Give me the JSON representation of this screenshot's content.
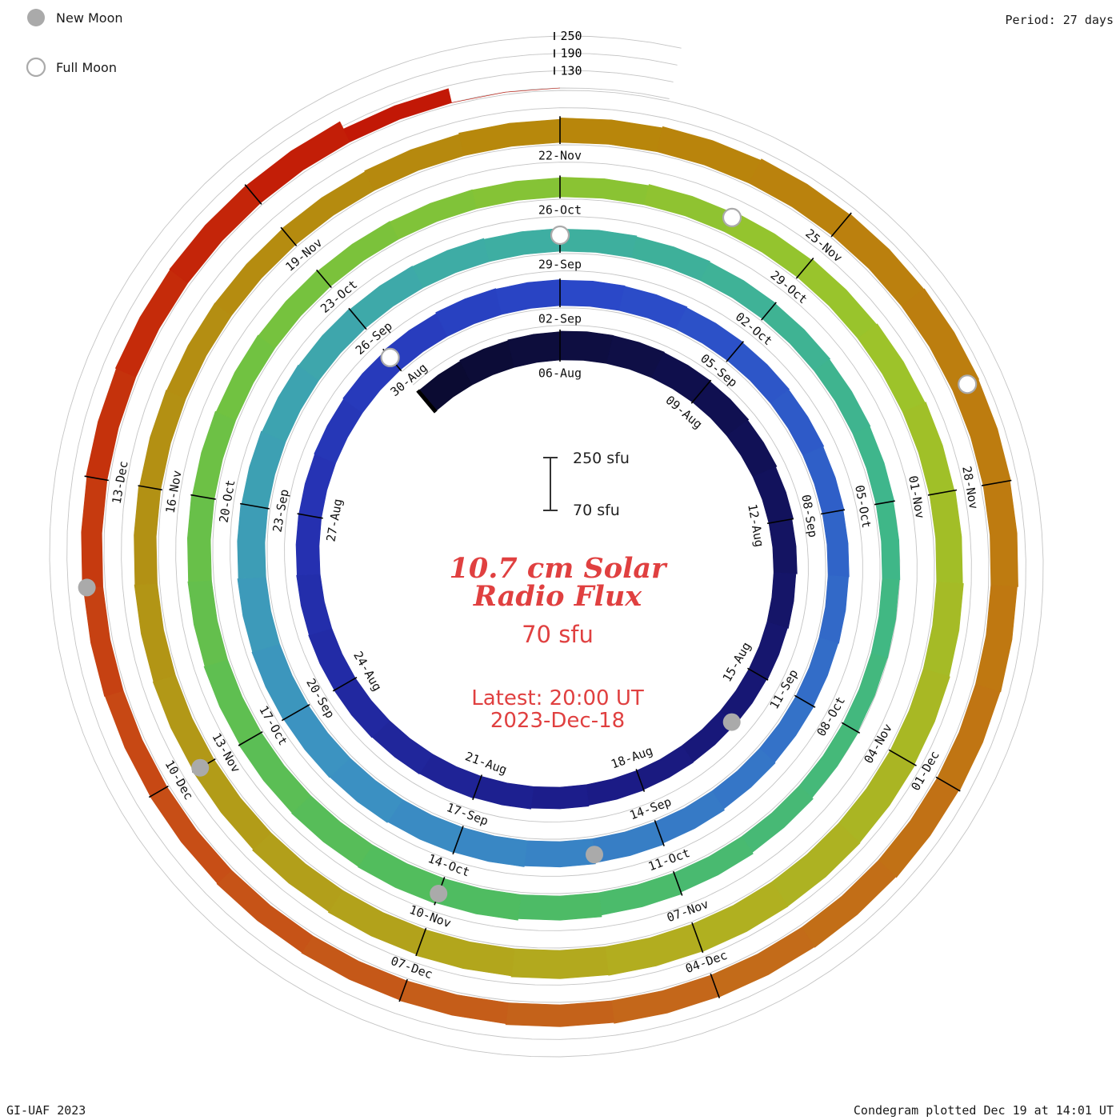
{
  "legend": {
    "new_moon": "New Moon",
    "full_moon": "Full Moon"
  },
  "period_label": "Period: 27 days",
  "credit": "GI-UAF 2023",
  "plotted_label": "Condegram plotted Dec 19 at 14:01 UT",
  "title": {
    "line1": "10.7 cm Solar",
    "line2": "Radio Flux",
    "latest_flux": "70 sfu",
    "latest_label": "Latest: 20:00 UT",
    "latest_date": "2023-Dec-18"
  },
  "scale": {
    "top_label": "250 sfu",
    "bottom_label": "70 sfu",
    "axis_labels": [
      "250",
      "190",
      "130"
    ]
  },
  "colors": {
    "red_text": "#e04040",
    "moon": "#aaaaaa",
    "guide": "#c4c4c4",
    "tick": "#000000"
  },
  "chart_data": {
    "type": "area",
    "subtype": "spiral-condegram",
    "title": "10.7 cm Solar Radio Flux",
    "period_days": 27,
    "start_date": "2023-08-03",
    "end_date": "2023-12-18",
    "radial_unit": "sfu",
    "flux_baseline": 70,
    "flux_max": 250,
    "flux_gridlines": [
      130,
      190,
      250
    ],
    "tick_interval_days": 3,
    "tick_start_index": 3,
    "tick_end_index": 135,
    "flux": [
      162,
      165,
      168,
      170,
      169,
      167,
      164,
      160,
      156,
      151,
      147,
      144,
      141,
      139,
      140,
      142,
      145,
      148,
      151,
      153,
      155,
      154,
      152,
      150,
      149,
      151,
      154,
      158,
      162,
      160,
      158,
      156,
      153,
      151,
      149,
      146,
      143,
      141,
      139,
      141,
      144,
      149,
      154,
      158,
      161,
      163,
      166,
      168,
      170,
      168,
      165,
      162,
      159,
      157,
      154,
      152,
      149,
      147,
      144,
      141,
      139,
      136,
      134,
      131,
      129,
      128,
      131,
      136,
      141,
      148,
      154,
      159,
      162,
      160,
      158,
      155,
      152,
      150,
      147,
      144,
      142,
      139,
      137,
      136,
      138,
      142,
      147,
      151,
      154,
      157,
      160,
      163,
      166,
      169,
      171,
      172,
      170,
      168,
      165,
      161,
      158,
      154,
      151,
      149,
      147,
      144,
      142,
      141,
      143,
      146,
      150,
      155,
      159,
      164,
      167,
      169,
      167,
      164,
      161,
      159,
      156,
      153,
      151,
      149,
      146,
      143,
      141,
      139,
      137,
      136,
      138,
      141,
      144,
      147,
      149,
      148,
      120,
      70
    ],
    "date_labels": [
      "06-Aug",
      "09-Aug",
      "12-Aug",
      "15-Aug",
      "18-Aug",
      "21-Aug",
      "24-Aug",
      "27-Aug",
      "30-Aug",
      "02-Sep",
      "05-Sep",
      "08-Sep",
      "11-Sep",
      "14-Sep",
      "17-Sep",
      "20-Sep",
      "23-Sep",
      "26-Sep",
      "29-Sep",
      "02-Oct",
      "05-Oct",
      "08-Oct",
      "11-Oct",
      "14-Oct",
      "17-Oct",
      "20-Oct",
      "23-Oct",
      "26-Oct",
      "29-Oct",
      "01-Nov",
      "04-Nov",
      "07-Nov",
      "10-Nov",
      "13-Nov",
      "16-Nov",
      "19-Nov",
      "22-Nov",
      "25-Nov",
      "28-Nov",
      "01-Dec",
      "04-Dec",
      "07-Dec",
      "10-Dec",
      "13-Dec"
    ],
    "moons": [
      {
        "type": "new",
        "date": "2023-08-16",
        "day_index": 13
      },
      {
        "type": "full",
        "date": "2023-08-30",
        "day_index": 27
      },
      {
        "type": "new",
        "date": "2023-09-15",
        "day_index": 43
      },
      {
        "type": "full",
        "date": "2023-09-29",
        "day_index": 57
      },
      {
        "type": "new",
        "date": "2023-10-14",
        "day_index": 72
      },
      {
        "type": "full",
        "date": "2023-10-28",
        "day_index": 86
      },
      {
        "type": "new",
        "date": "2023-11-13",
        "day_index": 102
      },
      {
        "type": "full",
        "date": "2023-11-27",
        "day_index": 116
      },
      {
        "type": "new",
        "date": "2023-12-12",
        "day_index": 131
      }
    ],
    "colormap": [
      [
        0.0,
        "#0b0b32"
      ],
      [
        0.05,
        "#111155"
      ],
      [
        0.11,
        "#1b1b86"
      ],
      [
        0.17,
        "#2531b2"
      ],
      [
        0.22,
        "#2a48c8"
      ],
      [
        0.28,
        "#336fc8"
      ],
      [
        0.34,
        "#3c92c2"
      ],
      [
        0.4,
        "#3eaca6"
      ],
      [
        0.46,
        "#3fb788"
      ],
      [
        0.52,
        "#4fbc60"
      ],
      [
        0.58,
        "#73c23f"
      ],
      [
        0.64,
        "#9cc42a"
      ],
      [
        0.7,
        "#b2ad1f"
      ],
      [
        0.76,
        "#b29114"
      ],
      [
        0.81,
        "#b8860b"
      ],
      [
        0.86,
        "#bf7911"
      ],
      [
        0.9,
        "#c4661b"
      ],
      [
        0.94,
        "#c74a15"
      ],
      [
        0.97,
        "#c52c0a"
      ],
      [
        1.0,
        "#c11105"
      ]
    ]
  }
}
